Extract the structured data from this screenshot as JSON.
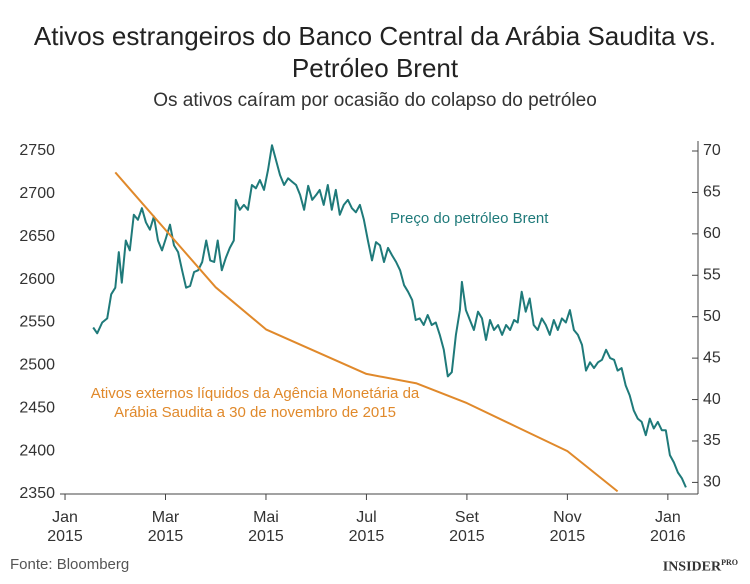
{
  "chart_data": {
    "type": "line",
    "title": "Ativos estrangeiros do Banco Central da Arábia Saudita vs. Petróleo Brent",
    "subtitle": "Os ativos caíram por ocasião do colapso do petróleo",
    "source": "Fonte: Bloomberg",
    "logo": "INSIDER",
    "logo_suffix": "PRO",
    "xlim": [
      -0.1,
      12.6
    ],
    "xticks": [
      {
        "value": 0,
        "label": "Jan 2015"
      },
      {
        "value": 2,
        "label": "Mar 2015"
      },
      {
        "value": 4,
        "label": "Mai 2015"
      },
      {
        "value": 6,
        "label": "Jul 2015"
      },
      {
        "value": 8,
        "label": "Set 2015"
      },
      {
        "value": 10,
        "label": "Nov 2015"
      },
      {
        "value": 12,
        "label": "Jan 2016"
      }
    ],
    "ylim": [
      2350,
      2750
    ],
    "yticks": [
      2350,
      2400,
      2450,
      2500,
      2550,
      2600,
      2650,
      2700,
      2750
    ],
    "y2lim": [
      28.6,
      70
    ],
    "y2ticks": [
      30,
      35,
      40,
      45,
      50,
      55,
      60,
      65,
      70
    ],
    "series": [
      {
        "name": "Preço do petróleo Brent",
        "color": "#1f7a7a",
        "axis": "y2",
        "x": [
          0.56,
          0.64,
          0.74,
          0.84,
          0.92,
          1.0,
          1.07,
          1.13,
          1.21,
          1.29,
          1.37,
          1.45,
          1.53,
          1.61,
          1.69,
          1.77,
          1.85,
          1.93,
          2.01,
          2.09,
          2.17,
          2.25,
          2.33,
          2.41,
          2.49,
          2.57,
          2.65,
          2.73,
          2.81,
          2.89,
          2.97,
          3.04,
          3.12,
          3.2,
          3.28,
          3.36,
          3.4,
          3.48,
          3.56,
          3.64,
          3.72,
          3.8,
          3.88,
          3.96,
          4.04,
          4.12,
          4.2,
          4.28,
          4.36,
          4.44,
          4.52,
          4.6,
          4.68,
          4.76,
          4.84,
          4.92,
          5.0,
          5.07,
          5.15,
          5.23,
          5.31,
          5.39,
          5.47,
          5.55,
          5.63,
          5.71,
          5.79,
          5.87,
          5.95,
          6.03,
          6.11,
          6.19,
          6.27,
          6.35,
          6.43,
          6.51,
          6.59,
          6.67,
          6.75,
          6.83,
          6.91,
          6.98,
          7.06,
          7.14,
          7.22,
          7.3,
          7.38,
          7.46,
          7.54,
          7.62,
          7.7,
          7.78,
          7.86,
          7.9,
          7.98,
          8.06,
          8.14,
          8.22,
          8.3,
          8.38,
          8.46,
          8.54,
          8.62,
          8.7,
          8.78,
          8.86,
          8.94,
          9.01,
          9.09,
          9.17,
          9.25,
          9.33,
          9.41,
          9.49,
          9.57,
          9.65,
          9.73,
          9.81,
          9.89,
          9.97,
          10.05,
          10.13,
          10.21,
          10.29,
          10.37,
          10.45,
          10.53,
          10.61,
          10.69,
          10.77,
          10.85,
          10.93,
          11.0,
          11.08,
          11.16,
          11.24,
          11.32,
          11.4,
          11.48,
          11.56,
          11.64,
          11.72,
          11.8,
          11.88,
          11.96,
          12.04,
          12.12,
          12.2,
          12.28,
          12.36
        ],
        "values": [
          48.7,
          48.0,
          49.3,
          49.8,
          52.7,
          53.5,
          57.8,
          54.1,
          59.2,
          58.0,
          62.3,
          61.7,
          63.1,
          61.4,
          60.5,
          62.1,
          59.2,
          58.0,
          59.5,
          61.1,
          58.6,
          57.8,
          55.6,
          53.5,
          53.7,
          55.4,
          55.6,
          56.6,
          59.2,
          56.8,
          56.6,
          59.2,
          55.6,
          57.1,
          58.3,
          59.2,
          64.1,
          62.9,
          63.5,
          62.9,
          65.9,
          65.5,
          66.5,
          65.3,
          67.7,
          70.7,
          68.9,
          67.1,
          65.9,
          66.7,
          66.3,
          65.9,
          64.7,
          62.9,
          65.8,
          64.1,
          64.7,
          65.3,
          63.5,
          65.9,
          62.9,
          65.3,
          62.3,
          63.5,
          64.1,
          63.1,
          62.6,
          63.5,
          61.7,
          59.2,
          56.8,
          59.0,
          58.6,
          56.6,
          58.3,
          57.4,
          56.6,
          55.6,
          53.8,
          53.0,
          52.0,
          49.6,
          49.8,
          49.0,
          50.2,
          49.0,
          49.3,
          47.8,
          46.0,
          42.8,
          43.3,
          47.8,
          50.8,
          54.2,
          50.8,
          49.6,
          48.4,
          50.6,
          49.8,
          47.2,
          49.6,
          48.4,
          49.0,
          47.8,
          49.0,
          48.4,
          49.6,
          49.3,
          53.0,
          50.6,
          52.2,
          49.0,
          48.4,
          49.8,
          49.0,
          47.8,
          49.6,
          48.4,
          49.8,
          49.3,
          50.8,
          48.4,
          47.8,
          46.6,
          43.5,
          44.5,
          43.8,
          44.5,
          44.8,
          46.0,
          45.0,
          44.8,
          43.5,
          43.8,
          41.7,
          40.5,
          38.7,
          37.7,
          37.3,
          35.7,
          37.7,
          36.5,
          37.3,
          36.3,
          36.3,
          33.3,
          32.4,
          31.2,
          30.5,
          29.4
        ]
      },
      {
        "name": "Ativos externos líquidos da Agência Monetária da Arábia Saudita a 30 de novembro de 2015",
        "color": "#e0892b",
        "axis": "y",
        "x": [
          1,
          2,
          3,
          4,
          5,
          6,
          7,
          8,
          9,
          10,
          11
        ],
        "values": [
          2725,
          2658,
          2591,
          2542,
          2516,
          2490,
          2479,
          2456,
          2428,
          2400,
          2353
        ]
      }
    ]
  }
}
